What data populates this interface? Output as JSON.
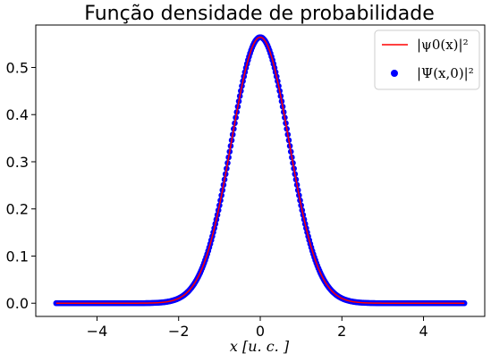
{
  "chart_data": {
    "type": "line+scatter",
    "title": "Função densidade de probabilidade",
    "xlabel": "x [u. c. ]",
    "ylabel": "",
    "xlim": [
      -5.5,
      5.5
    ],
    "ylim": [
      -0.028,
      0.59
    ],
    "xticks": [
      -4,
      -2,
      0,
      2,
      4
    ],
    "xtick_labels": [
      "−4",
      "−2",
      "0",
      "2",
      "4"
    ],
    "yticks": [
      0.0,
      0.1,
      0.2,
      0.3,
      0.4,
      0.5
    ],
    "ytick_labels": [
      "0.0",
      "0.1",
      "0.2",
      "0.3",
      "0.4",
      "0.5"
    ],
    "grid": false,
    "legend_position": "top-right",
    "x_range": [
      -5,
      5
    ],
    "series": [
      {
        "name": "|ψ0(x)|²",
        "kind": "line",
        "color": "#ff0000",
        "function": "exp(-x^2)/sqrt(pi)",
        "peak": 0.564
      },
      {
        "name": "|Ψ(x,0)|²",
        "kind": "scatter",
        "color": "#0000ff",
        "function": "exp(-x^2)/sqrt(pi)",
        "peak": 0.564
      }
    ]
  }
}
